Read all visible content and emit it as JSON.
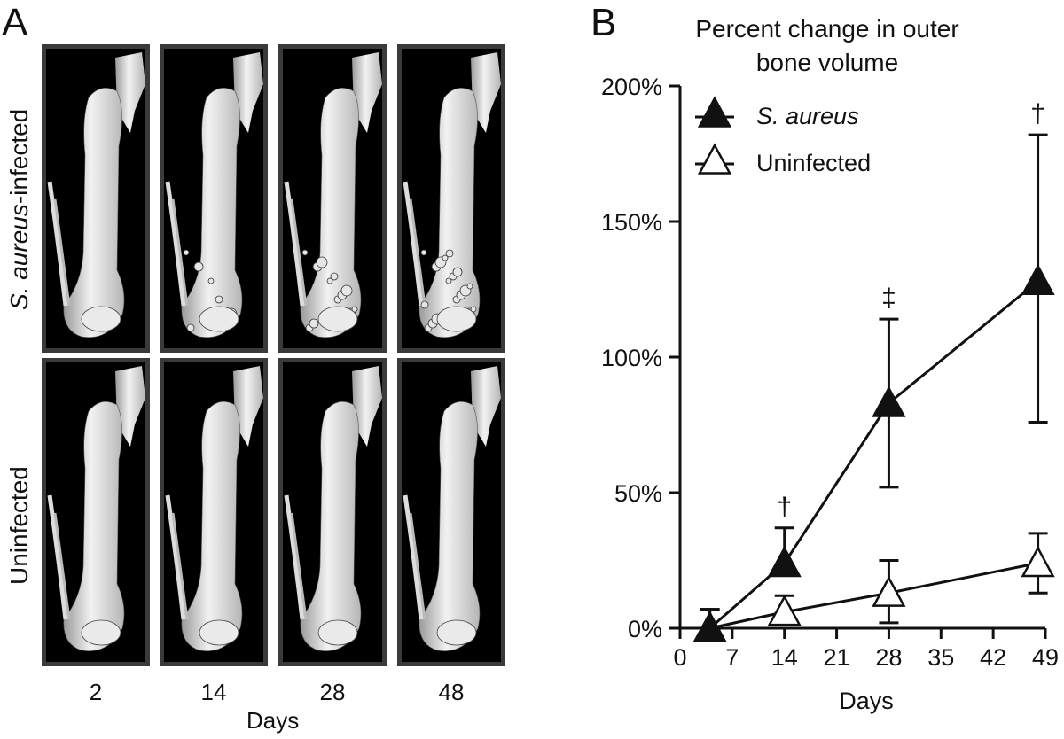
{
  "panel_a": {
    "letter": "A",
    "row_labels": [
      {
        "italic": "S. aureus",
        "rest": "-infected"
      },
      {
        "italic": "",
        "rest": "Uninfected"
      }
    ],
    "column_labels": [
      "2",
      "14",
      "28",
      "48"
    ],
    "xlabel": "Days"
  },
  "panel_b": {
    "letter": "B"
  },
  "chart_data": {
    "type": "line",
    "title": "Percent change in outer bone volume",
    "title_lines": [
      "Percent change in outer",
      "bone volume"
    ],
    "xlabel": "Days",
    "ylabel": "",
    "xlim": [
      0,
      49
    ],
    "ylim": [
      0,
      200
    ],
    "xticks": [
      0,
      7,
      14,
      21,
      28,
      35,
      42,
      49
    ],
    "yticks": [
      0,
      50,
      100,
      150,
      200
    ],
    "ytick_labels": [
      "0%",
      "50%",
      "100%",
      "150%",
      "200%"
    ],
    "series": [
      {
        "name": "S. aureus",
        "marker": "filled-triangle",
        "x": [
          4,
          14,
          28,
          48
        ],
        "y": [
          0,
          24,
          83,
          128
        ],
        "err_upper": [
          7,
          13,
          31,
          54
        ],
        "err_lower": [
          0,
          0,
          31,
          52
        ],
        "color": "#111111"
      },
      {
        "name": "Uninfected",
        "marker": "open-triangle",
        "x": [
          4,
          14,
          28,
          48
        ],
        "y": [
          0,
          6,
          13,
          24
        ],
        "err_upper": [
          7,
          6,
          12,
          11
        ],
        "err_lower": [
          0,
          0,
          11,
          11
        ],
        "color": "#111111"
      }
    ],
    "annotations": [
      {
        "x": 14,
        "text": "†"
      },
      {
        "x": 28,
        "text": "‡"
      },
      {
        "x": 48,
        "text": "†"
      }
    ],
    "legend_position": "top-left"
  }
}
